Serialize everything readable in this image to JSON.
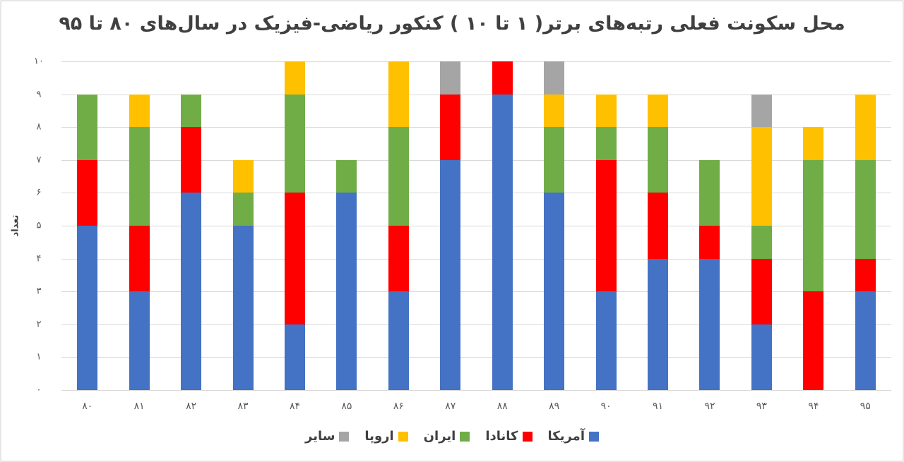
{
  "chart_data": {
    "type": "bar",
    "stacked": true,
    "title": "محل سکونت فعلی رتبه‌های برتر( ۱ تا ۱۰ ) کنکور ریاضی-فیزیک در سال‌های ۸۰ تا ۹۵",
    "xlabel": "",
    "ylabel": "تعداد",
    "ylim": [
      0,
      10
    ],
    "yticks": [
      "۰",
      "۱",
      "۲",
      "۳",
      "۴",
      "۵",
      "۶",
      "۷",
      "۸",
      "۹",
      "۱۰"
    ],
    "grid": true,
    "legend_position": "bottom",
    "categories": [
      "۸۰",
      "۸۱",
      "۸۲",
      "۸۳",
      "۸۴",
      "۸۵",
      "۸۶",
      "۸۷",
      "۸۸",
      "۸۹",
      "۹۰",
      "۹۱",
      "۹۲",
      "۹۳",
      "۹۴",
      "۹۵"
    ],
    "series": [
      {
        "name": "آمریکا",
        "color": "#4472C4",
        "values": [
          5,
          3,
          6,
          5,
          2,
          6,
          3,
          7,
          9,
          6,
          3,
          4,
          4,
          2,
          0,
          3
        ]
      },
      {
        "name": "کانادا",
        "color": "#FF0000",
        "values": [
          2,
          2,
          2,
          0,
          4,
          0,
          2,
          2,
          1,
          0,
          4,
          2,
          1,
          2,
          3,
          1
        ]
      },
      {
        "name": "ایران",
        "color": "#70AD47",
        "values": [
          2,
          3,
          1,
          1,
          3,
          1,
          3,
          0,
          0,
          2,
          1,
          2,
          2,
          1,
          4,
          3
        ]
      },
      {
        "name": "اروپا",
        "color": "#FFC000",
        "values": [
          0,
          1,
          0,
          1,
          1,
          0,
          2,
          0,
          0,
          1,
          1,
          1,
          0,
          3,
          1,
          2
        ]
      },
      {
        "name": "سایر",
        "color": "#A5A5A5",
        "values": [
          0,
          0,
          0,
          0,
          0,
          0,
          0,
          1,
          0,
          1,
          0,
          0,
          0,
          1,
          0,
          0
        ]
      }
    ]
  }
}
